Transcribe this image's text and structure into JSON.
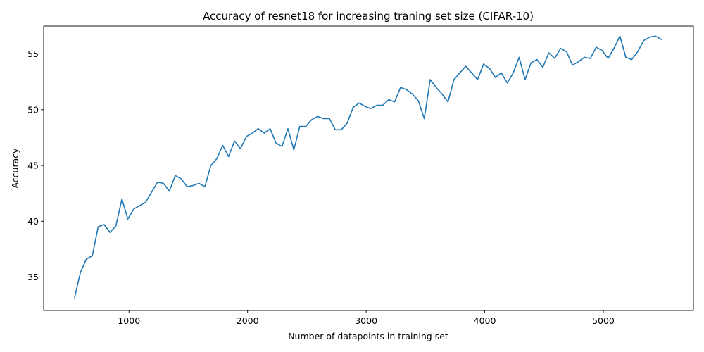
{
  "chart_data": {
    "type": "line",
    "title": "Accuracy of resnet18 for increasing traning set size (CIFAR-10)",
    "xlabel": "Number of datapoints in training set",
    "ylabel": "Accuracy",
    "xlim": [
      280,
      5760
    ],
    "ylim": [
      32.0,
      57.5
    ],
    "xticks": [
      1000,
      2000,
      3000,
      4000,
      5000
    ],
    "yticks": [
      35,
      40,
      45,
      50,
      55
    ],
    "grid": false,
    "series": [
      {
        "color": "#1f77b4",
        "x": [
          540,
          590,
          640,
          690,
          740,
          790,
          840,
          890,
          940,
          990,
          1040,
          1090,
          1140,
          1190,
          1240,
          1290,
          1340,
          1390,
          1440,
          1490,
          1540,
          1590,
          1640,
          1690,
          1740,
          1790,
          1840,
          1890,
          1940,
          1990,
          2040,
          2090,
          2140,
          2190,
          2240,
          2290,
          2340,
          2390,
          2440,
          2490,
          2540,
          2590,
          2640,
          2690,
          2740,
          2790,
          2840,
          2890,
          2940,
          2990,
          3040,
          3090,
          3140,
          3190,
          3240,
          3290,
          3340,
          3390,
          3440,
          3490,
          3540,
          3590,
          3640,
          3690,
          3740,
          3790,
          3840,
          3890,
          3940,
          3990,
          4040,
          4090,
          4140,
          4190,
          4240,
          4290,
          4340,
          4390,
          4440,
          4490,
          4540,
          4590,
          4640,
          4690,
          4740,
          4790,
          4840,
          4890,
          4940,
          4990,
          5040,
          5090,
          5140,
          5190,
          5240,
          5290,
          5340,
          5390,
          5440,
          5490
        ],
        "y": [
          33.1,
          35.4,
          36.6,
          36.9,
          39.5,
          39.7,
          39.0,
          39.6,
          42.0,
          40.2,
          41.1,
          41.4,
          41.7,
          42.6,
          43.5,
          43.4,
          42.7,
          44.1,
          43.8,
          43.1,
          43.2,
          43.4,
          43.1,
          45.0,
          45.6,
          46.8,
          45.8,
          47.2,
          46.5,
          47.6,
          47.9,
          48.3,
          47.9,
          48.3,
          47.0,
          46.7,
          48.3,
          46.4,
          48.5,
          48.5,
          49.1,
          49.4,
          49.2,
          49.2,
          48.2,
          48.2,
          48.8,
          50.2,
          50.6,
          50.3,
          50.1,
          50.4,
          50.4,
          50.9,
          50.7,
          52.0,
          51.8,
          51.4,
          50.8,
          49.2,
          52.7,
          52.0,
          51.4,
          50.7,
          52.7,
          53.3,
          53.9,
          53.3,
          52.7,
          54.1,
          53.7,
          52.9,
          53.3,
          52.4,
          53.3,
          54.7,
          52.7,
          54.2,
          54.5,
          53.8,
          55.1,
          54.6,
          55.5,
          55.2,
          54.0,
          54.3,
          54.7,
          54.6,
          55.6,
          55.3,
          54.6,
          55.5,
          56.6,
          54.7,
          54.5,
          55.2,
          56.2,
          56.5,
          56.6,
          56.3
        ]
      }
    ]
  }
}
